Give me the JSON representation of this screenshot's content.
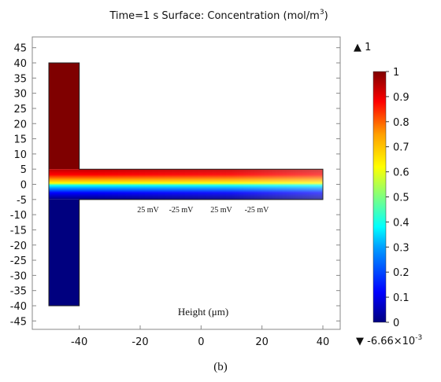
{
  "chart_data": {
    "type": "heatmap",
    "title": "Time=1 s   Surface: Concentration (mol/m",
    "title_superscript": "3",
    "title_suffix": ")",
    "xlabel": "Height (μm)",
    "xlim": [
      -55,
      45
    ],
    "ylim": [
      -47,
      47
    ],
    "x_ticks": [
      -40,
      -20,
      0,
      20,
      40
    ],
    "x_tick_labels": [
      "-40",
      "-20",
      "0",
      "20",
      "40"
    ],
    "y_ticks": [
      45,
      40,
      35,
      30,
      25,
      20,
      15,
      10,
      5,
      0,
      -5,
      -10,
      -15,
      -20,
      -25,
      -30,
      -35,
      -40,
      -45
    ],
    "y_tick_labels": [
      "45",
      "40",
      "35",
      "30",
      "25",
      "20",
      "15",
      "10",
      "5",
      "0",
      "-5",
      "-10",
      "-15",
      "-20",
      "-25",
      "-30",
      "-35",
      "-40",
      "-45"
    ],
    "geometry": {
      "inlet_top": {
        "x": [
          -50,
          -40
        ],
        "y": [
          5,
          40
        ],
        "concentration": 1
      },
      "outlet_bottom": {
        "x": [
          -50,
          -40
        ],
        "y": [
          -40,
          -5
        ],
        "concentration": 0
      },
      "main_channel": {
        "x": [
          -50,
          40
        ],
        "y": [
          -5,
          5
        ],
        "concentration_top": 1,
        "concentration_bottom": 0
      }
    },
    "electrode_labels": [
      "25 mV",
      "-25 mV",
      "25 mV",
      "-25 mV"
    ],
    "colorbar": {
      "max_marker": "▲ 1",
      "min_marker": "▼ -6.66×10",
      "min_marker_exponent": "-3",
      "ticks": [
        "1",
        "0.9",
        "0.8",
        "0.7",
        "0.6",
        "0.5",
        "0.4",
        "0.3",
        "0.2",
        "0.1",
        "0"
      ],
      "tick_values": [
        1,
        0.9,
        0.8,
        0.7,
        0.6,
        0.5,
        0.4,
        0.3,
        0.2,
        0.1,
        0
      ],
      "colormap": [
        "#00007f",
        "#0000ff",
        "#00a0ff",
        "#00ffff",
        "#7fff7f",
        "#ffff00",
        "#ff9f00",
        "#ff0000",
        "#7f0000"
      ]
    },
    "caption": "(b)"
  }
}
